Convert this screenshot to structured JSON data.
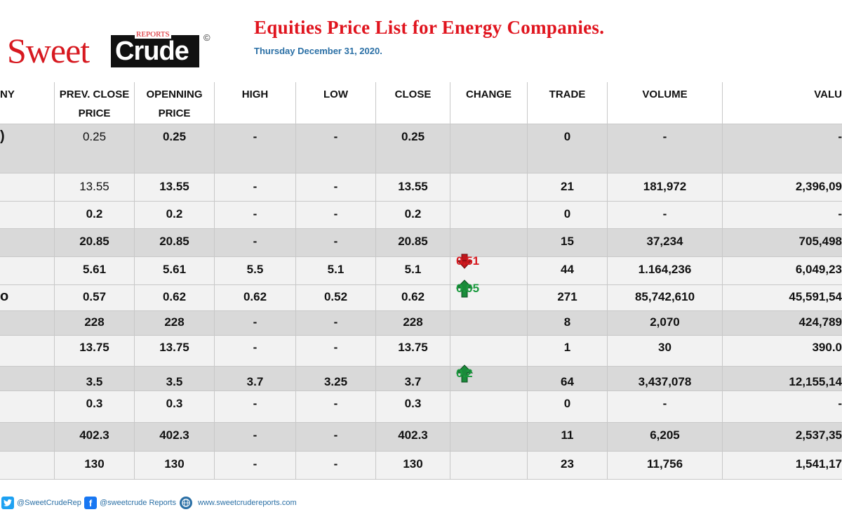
{
  "logo": {
    "sweet": "Sweet",
    "crude": "Crude",
    "reports": "REPORTS",
    "copyright": "©"
  },
  "title": "Equities Price List for Energy Companies.",
  "date": "Thursday December 31, 2020.",
  "colors": {
    "title": "#e0141e",
    "date": "#2a6fa5",
    "up": "#1a9a3e",
    "down": "#d71920",
    "row_grey": "#d9d9d9",
    "row_light": "#f2f2f2"
  },
  "headers": {
    "company": "NY",
    "prev_close": "PREV. CLOSE",
    "prev_close2": "PRICE",
    "opening": "OPENNING",
    "opening2": "PRICE",
    "high": "HIGH",
    "low": "LOW",
    "close": "CLOSE",
    "change": "CHANGE",
    "trade": "TRADE",
    "volume": "VOLUME",
    "value": "VALU"
  },
  "rows": [
    {
      "company": ")",
      "prev": "0.25",
      "open": "0.25",
      "high": "-",
      "low": "-",
      "close": "0.25",
      "change": "",
      "trade": "0",
      "volume": "-",
      "value": "-"
    },
    {
      "company": "",
      "prev": "13.55",
      "open": "13.55",
      "high": "-",
      "low": "-",
      "close": "13.55",
      "change": "",
      "trade": "21",
      "volume": "181,972",
      "value": "2,396,09"
    },
    {
      "company": "",
      "prev": "0.2",
      "open": "0.2",
      "high": "-",
      "low": "-",
      "close": "0.2",
      "change": "",
      "trade": "0",
      "volume": "-",
      "value": "-"
    },
    {
      "company": "",
      "prev": "20.85",
      "open": "20.85",
      "high": "-",
      "low": "-",
      "close": "20.85",
      "change": "",
      "trade": "15",
      "volume": "37,234",
      "value": "705,498"
    },
    {
      "company": "",
      "prev": "5.61",
      "open": "5.61",
      "high": "5.5",
      "low": "5.1",
      "close": "5.1",
      "change": "0.51",
      "direction": "down",
      "trade": "44",
      "volume": "1.164,236",
      "value": "6,049,23"
    },
    {
      "company": "o",
      "prev": "0.57",
      "open": "0.62",
      "high": "0.62",
      "low": "0.52",
      "close": "0.62",
      "change": "0.05",
      "direction": "up",
      "trade": "271",
      "volume": "85,742,610",
      "value": "45,591,54"
    },
    {
      "company": "",
      "prev": "228",
      "open": "228",
      "high": "-",
      "low": "-",
      "close": "228",
      "change": "",
      "trade": "8",
      "volume": "2,070",
      "value": "424,789"
    },
    {
      "company": "",
      "prev": "13.75",
      "open": "13.75",
      "high": "-",
      "low": "-",
      "close": "13.75",
      "change": "",
      "trade": "1",
      "volume": "30",
      "value": "390.0"
    },
    {
      "company": "",
      "prev": "3.5",
      "open": "3.5",
      "high": "3.7",
      "low": "3.25",
      "close": "3.7",
      "change": "0.2",
      "direction": "up",
      "trade": "64",
      "volume": "3,437,078",
      "value": "12,155,14"
    },
    {
      "company": "",
      "prev": "0.3",
      "open": "0.3",
      "high": "-",
      "low": "-",
      "close": "0.3",
      "change": "",
      "trade": "0",
      "volume": "-",
      "value": "-"
    },
    {
      "company": "",
      "prev": "402.3",
      "open": "402.3",
      "high": "-",
      "low": "-",
      "close": "402.3",
      "change": "",
      "trade": "11",
      "volume": "6,205",
      "value": "2,537,35"
    },
    {
      "company": "",
      "prev": "130",
      "open": "130",
      "high": "-",
      "low": "-",
      "close": "130",
      "change": "",
      "trade": "23",
      "volume": "11,756",
      "value": "1,541,17"
    }
  ],
  "footer": {
    "twitter": "@SweetCrudeRep",
    "facebook": "@sweetcrude Reports",
    "website": "www.sweetcrudereports.com",
    "icons": {
      "twitter": "twitter-icon",
      "facebook": "facebook-icon",
      "website": "globe-icon"
    }
  }
}
